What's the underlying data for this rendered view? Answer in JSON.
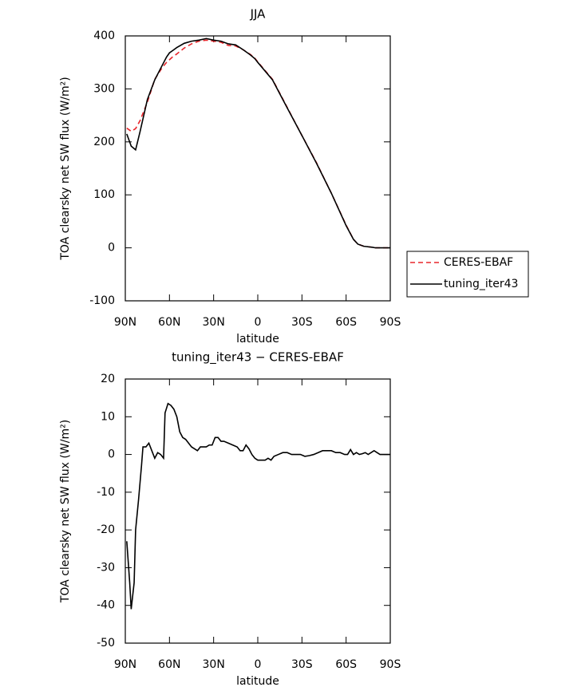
{
  "chart_data": [
    {
      "type": "line",
      "title": "JJA",
      "xlabel": "latitude",
      "ylabel": "TOA clearsky net SW flux (W/m²)",
      "x": [
        89,
        86,
        83,
        80,
        75,
        70,
        65,
        62,
        60,
        58,
        55,
        50,
        45,
        40,
        35,
        30,
        25,
        20,
        15,
        10,
        5,
        2,
        0,
        -10,
        -20,
        -30,
        -40,
        -50,
        -60,
        -65,
        -68,
        -72,
        -78,
        -80,
        -85,
        -90
      ],
      "series": [
        {
          "name": "CERES-EBAF",
          "color": "#e8262b",
          "linestyle": "dashed",
          "values": [
            226,
            220,
            225,
            240,
            275,
            318,
            340,
            350,
            355,
            360,
            366,
            377,
            385,
            390,
            392,
            390,
            388,
            382,
            381,
            374,
            365,
            358,
            351,
            318,
            265,
            212,
            160,
            103,
            43,
            16,
            7,
            3,
            1,
            0,
            0,
            0
          ]
        },
        {
          "name": "tuning_iter43",
          "color": "#000000",
          "linestyle": "solid",
          "values": [
            215,
            192,
            185,
            219,
            280,
            317,
            344,
            360,
            368,
            372,
            378,
            386,
            390,
            392,
            395,
            392,
            390,
            385,
            383,
            374,
            364,
            357,
            350,
            317,
            264,
            212,
            159,
            103,
            42,
            16,
            7,
            3,
            1,
            0,
            0,
            0
          ]
        }
      ],
      "xlim": [
        90,
        -90
      ],
      "xticks": [
        {
          "value": 90,
          "label": "90N"
        },
        {
          "value": 60,
          "label": "60N"
        },
        {
          "value": 30,
          "label": "30N"
        },
        0,
        {
          "value": -30,
          "label": "30S"
        },
        {
          "value": -60,
          "label": "60S"
        },
        {
          "value": -90,
          "label": "90S"
        }
      ],
      "ylim": [
        -100,
        400
      ],
      "yticks": [
        -100,
        0,
        100,
        200,
        300,
        400
      ],
      "legend": "right"
    },
    {
      "type": "line",
      "title": "tuning_iter43 − CERES-EBAF",
      "xlabel": "latitude",
      "ylabel": "TOA clearsky net SW flux (W/m²)",
      "x": [
        89,
        87,
        86,
        84,
        83,
        81,
        79,
        78,
        76,
        74,
        72,
        70,
        68,
        66,
        64,
        63,
        61,
        59,
        57,
        55,
        53,
        51,
        49,
        47,
        45,
        43,
        41,
        39,
        37,
        35,
        33,
        31,
        29,
        27,
        25,
        23,
        20,
        17,
        14,
        12,
        10,
        8,
        6,
        4,
        2,
        0,
        -3,
        -5,
        -7,
        -9,
        -11,
        -14,
        -17,
        -20,
        -23,
        -26,
        -29,
        -32,
        -35,
        -38,
        -41,
        -44,
        -47,
        -50,
        -53,
        -56,
        -59,
        -61,
        -63,
        -65,
        -67,
        -69,
        -71,
        -73,
        -75,
        -77,
        -79,
        -81,
        -83,
        -90
      ],
      "series": [
        {
          "color": "#000000",
          "linestyle": "solid",
          "values": [
            -23,
            -34,
            -41,
            -34,
            -20,
            -12,
            -3,
            2,
            2,
            3,
            1,
            -1,
            0.5,
            0,
            -1,
            11,
            13.5,
            13,
            12,
            10,
            6,
            4.5,
            4,
            3,
            2,
            1.5,
            1,
            2,
            2,
            2,
            2.5,
            2.5,
            4.5,
            4.5,
            3.5,
            3.5,
            3,
            2.5,
            2,
            1,
            1,
            2.5,
            1.5,
            0,
            -1,
            -1.5,
            -1.5,
            -1.5,
            -1,
            -1.5,
            -0.5,
            0,
            0.5,
            0.5,
            0,
            0,
            0,
            -0.5,
            -0.3,
            0,
            0.5,
            1,
            1,
            1,
            0.5,
            0.5,
            0,
            0,
            1.3,
            0,
            0.5,
            0,
            0.2,
            0.5,
            0,
            0.5,
            1,
            0.5,
            0,
            0
          ]
        }
      ],
      "xlim": [
        90,
        -90
      ],
      "xticks": [
        {
          "value": 90,
          "label": "90N"
        },
        {
          "value": 60,
          "label": "60N"
        },
        {
          "value": 30,
          "label": "30N"
        },
        0,
        {
          "value": -30,
          "label": "30S"
        },
        {
          "value": -60,
          "label": "60S"
        },
        {
          "value": -90,
          "label": "90S"
        }
      ],
      "ylim": [
        -50,
        20
      ],
      "yticks": [
        -50,
        -40,
        -30,
        -20,
        -10,
        0,
        10,
        20
      ]
    }
  ]
}
